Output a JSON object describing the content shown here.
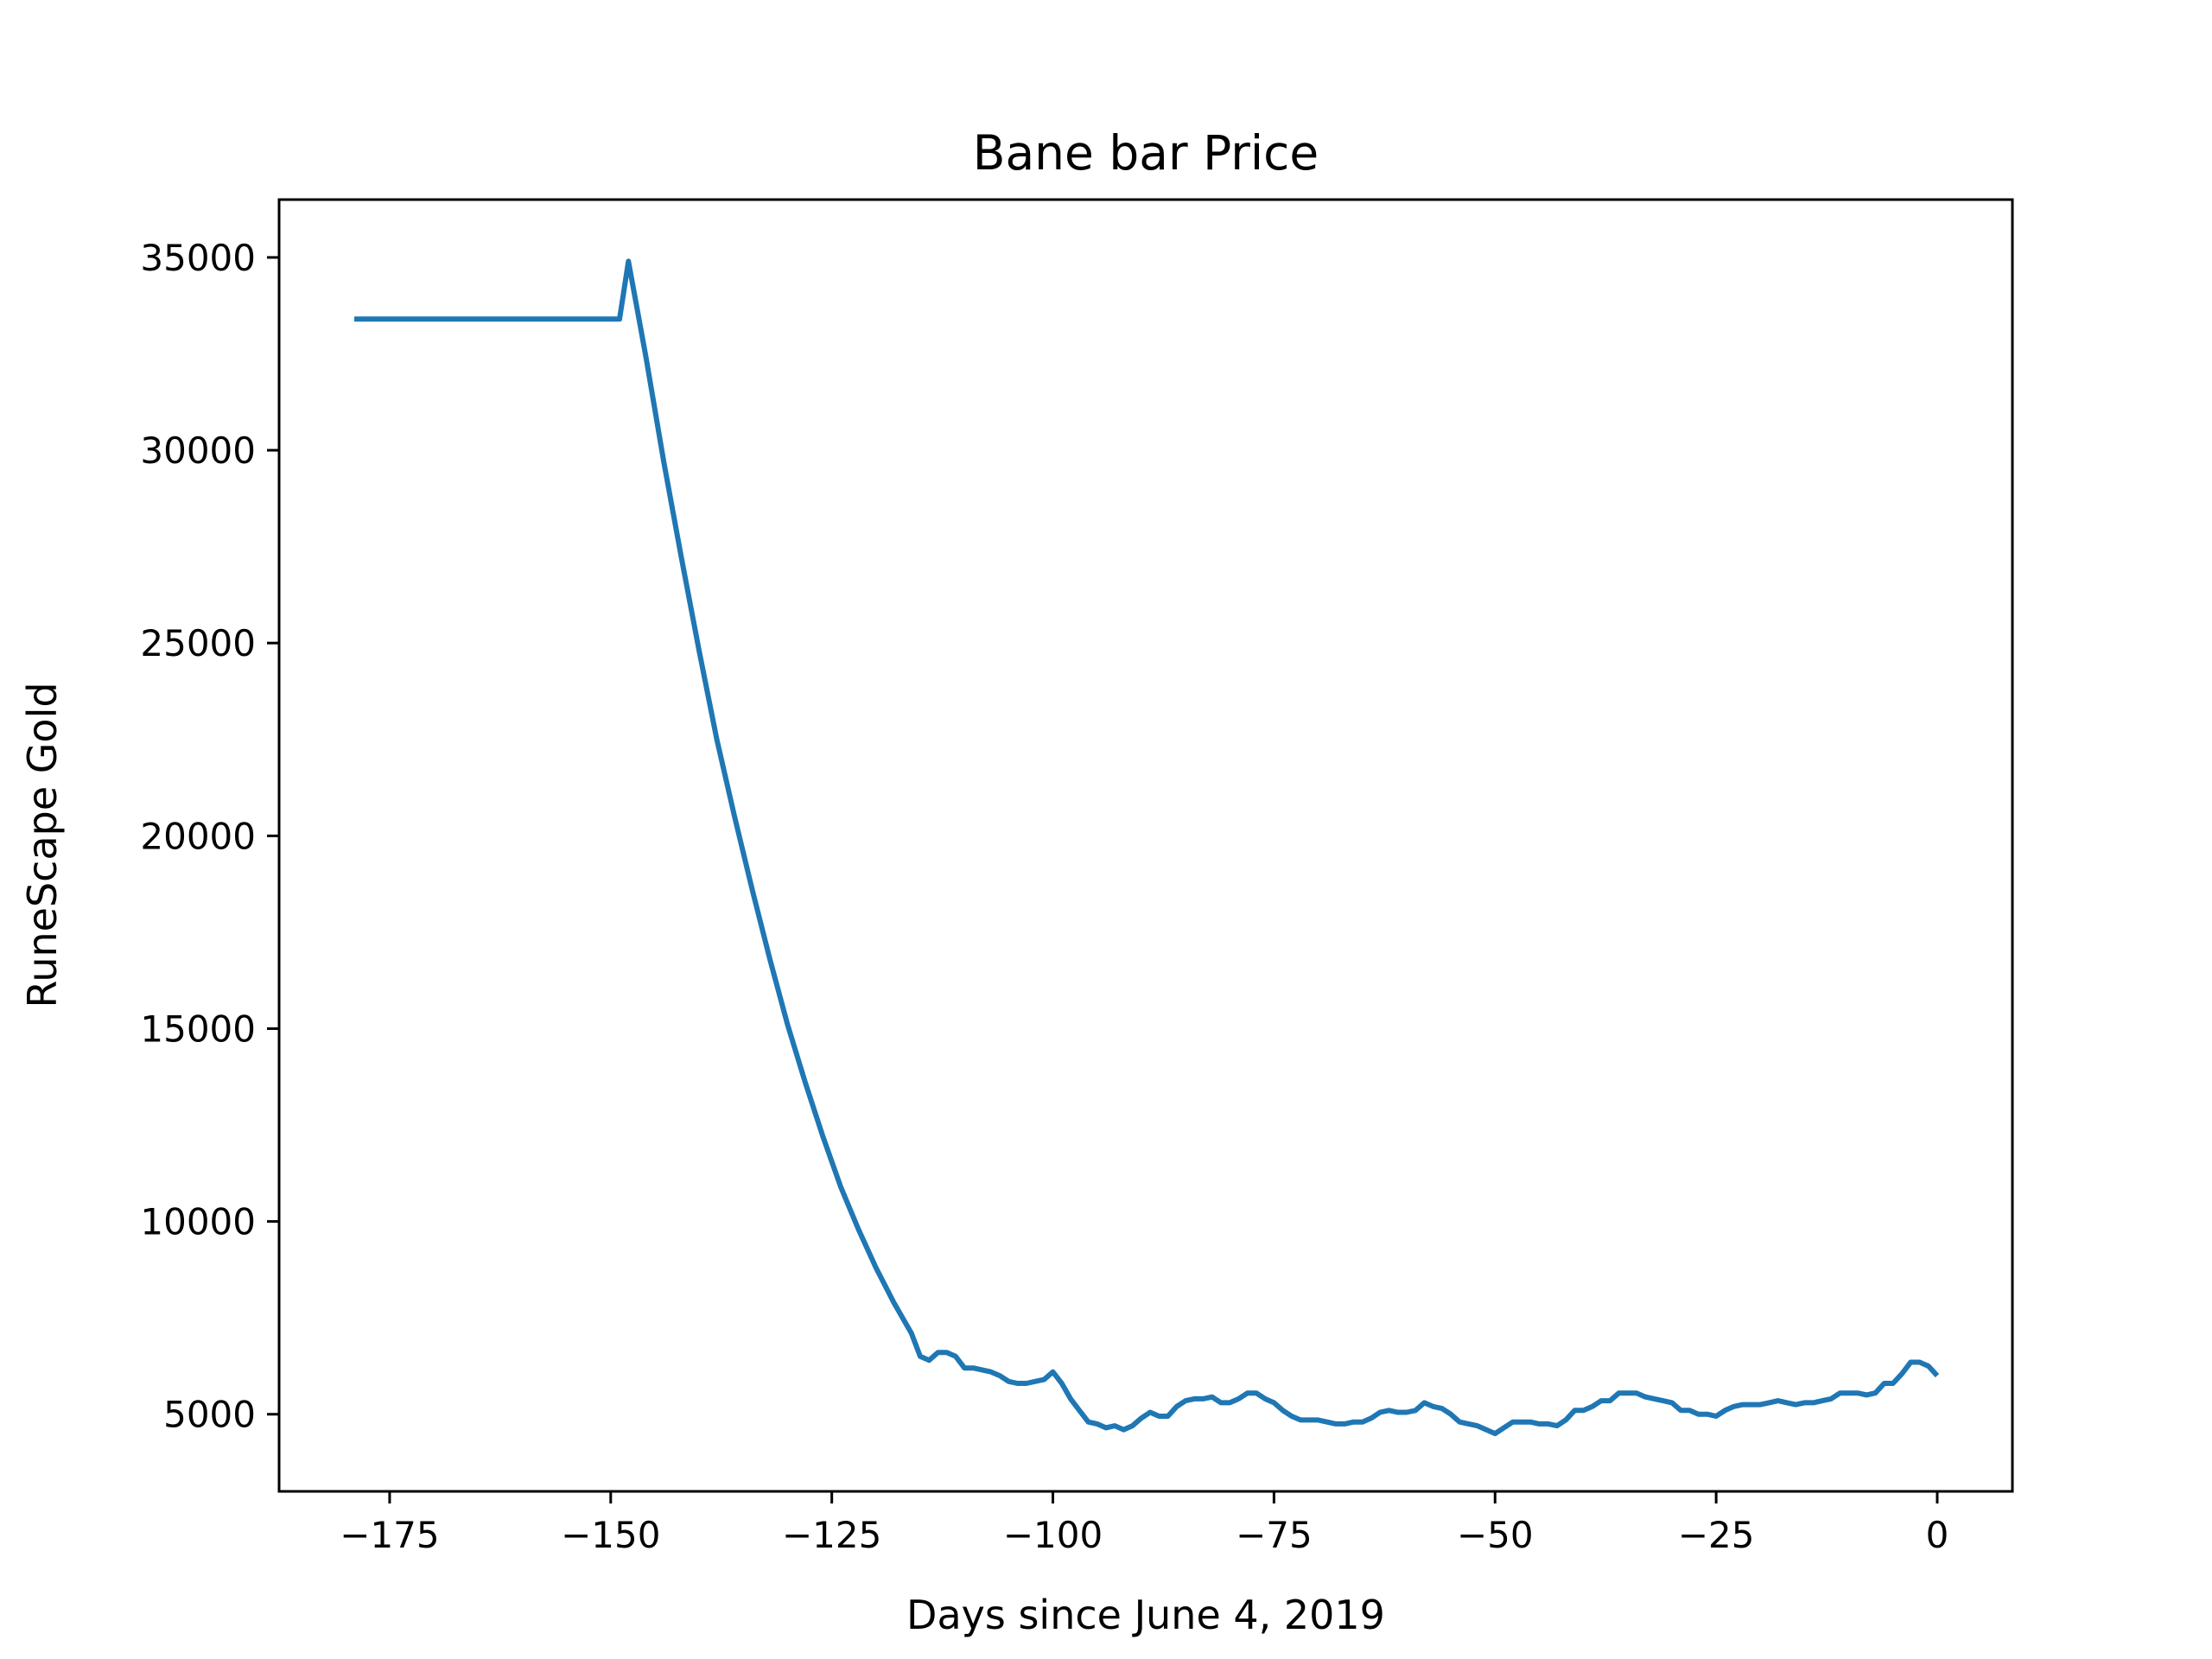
{
  "chart_data": {
    "type": "line",
    "title": "Bane bar Price",
    "xlabel": "Days since June 4, 2019",
    "ylabel": "RuneScape Gold",
    "xlim": [
      -187.5,
      8.5
    ],
    "ylim": [
      3000,
      36500
    ],
    "xticks": [
      -175,
      -150,
      -125,
      -100,
      -75,
      -50,
      -25,
      0
    ],
    "xtick_labels": [
      "−175",
      "−150",
      "−125",
      "−100",
      "−75",
      "−50",
      "−25",
      "0"
    ],
    "yticks": [
      5000,
      10000,
      15000,
      20000,
      25000,
      30000,
      35000
    ],
    "ytick_labels": [
      "5000",
      "10000",
      "15000",
      "20000",
      "25000",
      "30000",
      "35000"
    ],
    "grid": false,
    "colors": {
      "line": "#1f77b4",
      "axes": "#000000",
      "background": "#ffffff"
    },
    "series": [
      {
        "points": [
          [
            -179,
            33400
          ],
          [
            -149,
            33400
          ],
          [
            -148,
            34900
          ],
          [
            -146,
            32400
          ],
          [
            -144,
            29700
          ],
          [
            -142,
            27200
          ],
          [
            -140,
            24800
          ],
          [
            -138,
            22500
          ],
          [
            -136,
            20500
          ],
          [
            -134,
            18600
          ],
          [
            -132,
            16800
          ],
          [
            -130,
            15100
          ],
          [
            -128,
            13600
          ],
          [
            -126,
            12200
          ],
          [
            -124,
            10900
          ],
          [
            -122,
            9800
          ],
          [
            -120,
            8800
          ],
          [
            -118,
            7900
          ],
          [
            -116,
            7100
          ],
          [
            -115,
            6500
          ],
          [
            -114,
            6400
          ],
          [
            -113,
            6600
          ],
          [
            -112,
            6600
          ],
          [
            -111,
            6500
          ],
          [
            -110,
            6200
          ],
          [
            -109,
            6200
          ],
          [
            -107,
            6100
          ],
          [
            -106,
            6000
          ],
          [
            -105,
            5850
          ],
          [
            -104,
            5800
          ],
          [
            -103,
            5800
          ],
          [
            -101,
            5900
          ],
          [
            -100,
            6100
          ],
          [
            -99,
            5800
          ],
          [
            -98,
            5400
          ],
          [
            -97,
            5100
          ],
          [
            -96,
            4800
          ],
          [
            -95,
            4750
          ],
          [
            -94,
            4650
          ],
          [
            -93,
            4700
          ],
          [
            -92,
            4600
          ],
          [
            -91,
            4700
          ],
          [
            -90,
            4900
          ],
          [
            -89,
            5050
          ],
          [
            -88,
            4950
          ],
          [
            -87,
            4950
          ],
          [
            -86,
            5200
          ],
          [
            -85,
            5350
          ],
          [
            -84,
            5400
          ],
          [
            -83,
            5400
          ],
          [
            -82,
            5450
          ],
          [
            -81,
            5300
          ],
          [
            -80,
            5300
          ],
          [
            -79,
            5400
          ],
          [
            -78,
            5550
          ],
          [
            -77,
            5550
          ],
          [
            -76,
            5400
          ],
          [
            -75,
            5300
          ],
          [
            -74,
            5100
          ],
          [
            -73,
            4950
          ],
          [
            -72,
            4850
          ],
          [
            -71,
            4850
          ],
          [
            -70,
            4850
          ],
          [
            -69,
            4800
          ],
          [
            -68,
            4750
          ],
          [
            -67,
            4750
          ],
          [
            -66,
            4800
          ],
          [
            -65,
            4800
          ],
          [
            -64,
            4900
          ],
          [
            -63,
            5050
          ],
          [
            -62,
            5100
          ],
          [
            -61,
            5050
          ],
          [
            -60,
            5050
          ],
          [
            -59,
            5100
          ],
          [
            -58,
            5300
          ],
          [
            -57,
            5200
          ],
          [
            -56,
            5150
          ],
          [
            -55,
            5000
          ],
          [
            -54,
            4800
          ],
          [
            -53,
            4750
          ],
          [
            -52,
            4700
          ],
          [
            -51,
            4600
          ],
          [
            -50,
            4500
          ],
          [
            -49,
            4650
          ],
          [
            -48,
            4800
          ],
          [
            -47,
            4800
          ],
          [
            -46,
            4800
          ],
          [
            -45,
            4750
          ],
          [
            -44,
            4750
          ],
          [
            -43,
            4700
          ],
          [
            -42,
            4850
          ],
          [
            -41,
            5100
          ],
          [
            -40,
            5100
          ],
          [
            -39,
            5200
          ],
          [
            -38,
            5350
          ],
          [
            -37,
            5350
          ],
          [
            -36,
            5550
          ],
          [
            -35,
            5550
          ],
          [
            -34,
            5550
          ],
          [
            -33,
            5450
          ],
          [
            -32,
            5400
          ],
          [
            -31,
            5350
          ],
          [
            -30,
            5300
          ],
          [
            -29,
            5100
          ],
          [
            -28,
            5100
          ],
          [
            -27,
            5000
          ],
          [
            -26,
            5000
          ],
          [
            -25,
            4950
          ],
          [
            -24,
            5100
          ],
          [
            -23,
            5200
          ],
          [
            -22,
            5250
          ],
          [
            -21,
            5250
          ],
          [
            -20,
            5250
          ],
          [
            -19,
            5300
          ],
          [
            -18,
            5350
          ],
          [
            -17,
            5300
          ],
          [
            -16,
            5250
          ],
          [
            -15,
            5300
          ],
          [
            -14,
            5300
          ],
          [
            -13,
            5350
          ],
          [
            -12,
            5400
          ],
          [
            -11,
            5550
          ],
          [
            -10,
            5550
          ],
          [
            -9,
            5550
          ],
          [
            -8,
            5500
          ],
          [
            -7,
            5550
          ],
          [
            -6,
            5800
          ],
          [
            -5,
            5800
          ],
          [
            -4,
            6050
          ],
          [
            -3,
            6350
          ],
          [
            -2,
            6350
          ],
          [
            -1,
            6250
          ],
          [
            0,
            6000
          ]
        ]
      }
    ]
  }
}
